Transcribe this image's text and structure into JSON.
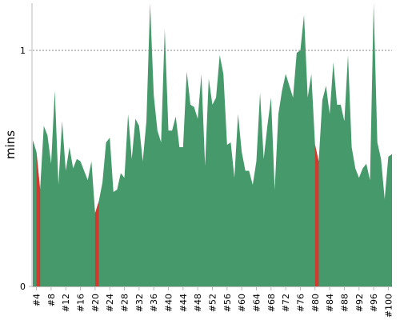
{
  "chart_data": {
    "type": "area",
    "title": "",
    "xlabel": "",
    "ylabel": "mins",
    "ylim": [
      0,
      1.2
    ],
    "reference_line": 1,
    "yticks": [
      0,
      1
    ],
    "grid": false,
    "legend": "none",
    "colors": {
      "normal": "#45996a",
      "deficit": "#d03a2f",
      "reference_line": "#888888",
      "axis": "#bbbbbb",
      "text": "#000000"
    },
    "x_start": 3,
    "x_tick_labels": [
      "#4",
      "#8",
      "#12",
      "#16",
      "#20",
      "#24",
      "#28",
      "#32",
      "#36",
      "#40",
      "#44",
      "#48",
      "#52",
      "#56",
      "#60",
      "#64",
      "#68",
      "#72",
      "#76",
      "#80",
      "#84",
      "#88",
      "#92",
      "#96",
      "#100"
    ],
    "values": [
      0.62,
      0.57,
      0.41,
      0.68,
      0.64,
      0.52,
      0.83,
      0.43,
      0.7,
      0.49,
      0.59,
      0.5,
      0.54,
      0.53,
      0.49,
      0.45,
      0.53,
      0.31,
      0.36,
      0.44,
      0.61,
      0.63,
      0.4,
      0.41,
      0.48,
      0.46,
      0.73,
      0.54,
      0.71,
      0.68,
      0.53,
      0.7,
      1.33,
      0.81,
      0.66,
      0.61,
      1.09,
      0.66,
      0.66,
      0.72,
      0.59,
      0.59,
      0.91,
      0.77,
      0.76,
      0.71,
      0.9,
      0.51,
      0.88,
      0.77,
      0.8,
      0.98,
      0.9,
      0.6,
      0.61,
      0.46,
      0.73,
      0.57,
      0.49,
      0.49,
      0.43,
      0.53,
      0.82,
      0.54,
      0.68,
      0.8,
      0.41,
      0.73,
      0.83,
      0.9,
      0.85,
      0.8,
      0.99,
      1.0,
      1.15,
      0.8,
      0.9,
      0.6,
      0.53,
      0.79,
      0.85,
      0.73,
      0.95,
      0.77,
      0.77,
      0.7,
      0.98,
      0.59,
      0.5,
      0.46,
      0.5,
      0.52,
      0.45,
      1.33,
      0.61,
      0.54,
      0.37,
      0.55,
      0.56
    ],
    "deficit_ranges": [
      [
        4,
        5
      ],
      [
        20,
        21
      ],
      [
        80,
        81
      ]
    ]
  }
}
